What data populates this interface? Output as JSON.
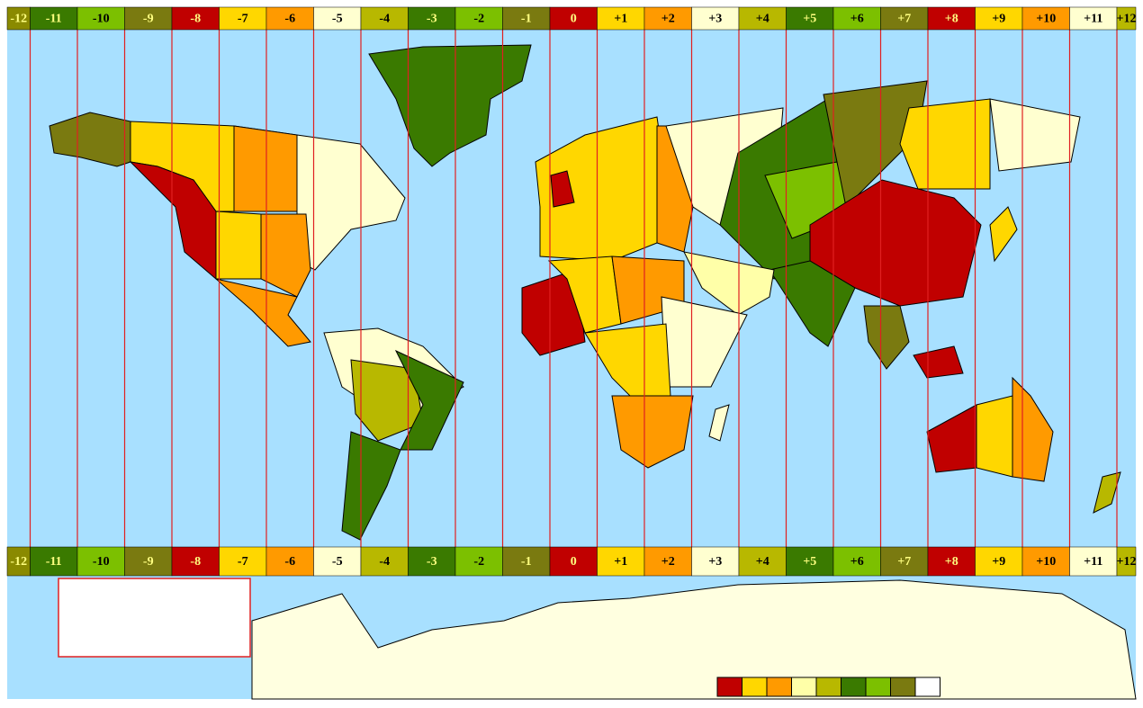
{
  "top_bar": [
    "-12",
    "-11",
    "-10",
    "-9",
    "-8",
    "-7",
    "-6",
    "-5",
    "-4",
    "-3",
    "-2",
    "-1",
    "0",
    "+1",
    "+2",
    "+3",
    "+4",
    "+5",
    "+6",
    "+7",
    "+8",
    "+9",
    "+10",
    "+11",
    "+12"
  ],
  "bottom_bar": [
    "-12",
    "-11",
    "-10",
    "-9",
    "-8",
    "-7",
    "-6",
    "-5",
    "-4",
    "-3",
    "-2",
    "-1",
    "0",
    "+1",
    "+2",
    "+3",
    "+4",
    "+5",
    "+6",
    "+7",
    "+8",
    "+9",
    "+10",
    "+11",
    "+12"
  ],
  "zone_colors": [
    "#8a8a00",
    "#3a7a00",
    "#7cc000",
    "#7a7a10",
    "#c00000",
    "#ffd700",
    "#ff9a00",
    "#ffffd0",
    "#b8b800",
    "#3a7a00",
    "#7cc000",
    "#7a7a10",
    "#c00000",
    "#ffd700",
    "#ff9a00",
    "#ffffd0",
    "#b8b800",
    "#3a7a00",
    "#7cc000",
    "#7a7a10",
    "#c00000",
    "#ffd700",
    "#ff9a00",
    "#ffffd0",
    "#b8b800"
  ],
  "legend_colors": [
    "#c00000",
    "#ffd700",
    "#ff9a00",
    "#ffffa8",
    "#b8b800",
    "#3a7a00",
    "#7cc000",
    "#7a7a10",
    "#ffffff"
  ]
}
